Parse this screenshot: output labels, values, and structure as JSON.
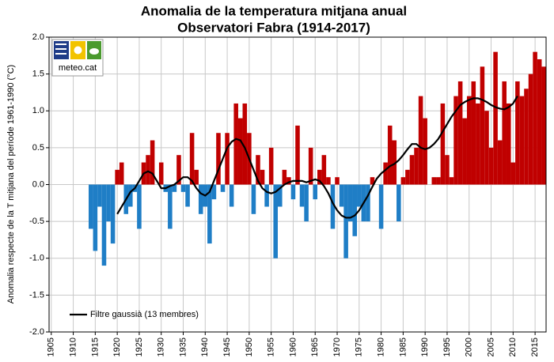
{
  "chart_data": {
    "type": "bar",
    "title": [
      "Anomalia de la temperatura mitjana anual",
      "Observatori Fabra (1914-2017)"
    ],
    "y_label": "Anomalia respecte de la T mitjana del període 1961-1990 (°C)",
    "logo_text": "meteo.cat",
    "x": [
      1914,
      1915,
      1916,
      1917,
      1918,
      1919,
      1920,
      1921,
      1922,
      1923,
      1924,
      1925,
      1926,
      1927,
      1928,
      1929,
      1930,
      1931,
      1932,
      1933,
      1934,
      1935,
      1936,
      1937,
      1938,
      1939,
      1940,
      1941,
      1942,
      1943,
      1944,
      1945,
      1946,
      1947,
      1948,
      1949,
      1950,
      1951,
      1952,
      1953,
      1954,
      1955,
      1956,
      1957,
      1958,
      1959,
      1960,
      1961,
      1962,
      1963,
      1964,
      1965,
      1966,
      1967,
      1968,
      1969,
      1970,
      1971,
      1972,
      1973,
      1974,
      1975,
      1976,
      1977,
      1978,
      1979,
      1980,
      1981,
      1982,
      1983,
      1984,
      1985,
      1986,
      1987,
      1988,
      1989,
      1990,
      1991,
      1992,
      1993,
      1994,
      1995,
      1996,
      1997,
      1998,
      1999,
      2000,
      2001,
      2002,
      2003,
      2004,
      2005,
      2006,
      2007,
      2008,
      2009,
      2010,
      2011,
      2012,
      2013,
      2014,
      2015,
      2016,
      2017
    ],
    "values": [
      -0.6,
      -0.9,
      -0.3,
      -1.1,
      -0.5,
      -0.8,
      0.2,
      0.3,
      -0.4,
      -0.3,
      -0.1,
      -0.6,
      0.3,
      0.4,
      0.6,
      0.0,
      0.3,
      -0.1,
      -0.6,
      -0.1,
      0.4,
      -0.1,
      -0.3,
      0.7,
      0.2,
      -0.4,
      -0.3,
      -0.8,
      -0.2,
      0.7,
      -0.1,
      0.7,
      -0.3,
      1.1,
      0.9,
      1.1,
      0.7,
      -0.4,
      0.4,
      0.2,
      -0.3,
      0.5,
      -1.0,
      -0.3,
      0.2,
      0.1,
      -0.2,
      0.8,
      -0.3,
      -0.5,
      0.5,
      -0.2,
      0.2,
      0.4,
      0.1,
      -0.6,
      0.1,
      -0.3,
      -1.0,
      -0.5,
      -0.7,
      -0.3,
      -0.5,
      -0.5,
      0.1,
      0.0,
      -0.6,
      0.3,
      0.8,
      0.6,
      -0.5,
      0.1,
      0.2,
      0.4,
      0.5,
      1.2,
      0.9,
      0.0,
      0.1,
      0.1,
      1.1,
      0.4,
      0.1,
      1.2,
      1.4,
      0.9,
      1.2,
      1.4,
      1.1,
      1.6,
      1.0,
      0.5,
      1.8,
      0.6,
      1.4,
      1.1,
      0.3,
      1.4,
      1.2,
      1.3,
      1.5,
      1.8,
      1.7,
      1.6
    ],
    "positive_color": "#c00000",
    "negative_color": "#1f7ec6",
    "line": {
      "name": "Filtre gaussià (13 membres)",
      "color": "#000000",
      "x": [
        1920,
        1921,
        1922,
        1923,
        1924,
        1925,
        1926,
        1927,
        1928,
        1929,
        1930,
        1931,
        1932,
        1933,
        1934,
        1935,
        1936,
        1937,
        1938,
        1939,
        1940,
        1941,
        1942,
        1943,
        1944,
        1945,
        1946,
        1947,
        1948,
        1949,
        1950,
        1951,
        1952,
        1953,
        1954,
        1955,
        1956,
        1957,
        1958,
        1959,
        1960,
        1961,
        1962,
        1963,
        1964,
        1965,
        1966,
        1967,
        1968,
        1969,
        1970,
        1971,
        1972,
        1973,
        1974,
        1975,
        1976,
        1977,
        1978,
        1979,
        1980,
        1981,
        1982,
        1983,
        1984,
        1985,
        1986,
        1987,
        1988,
        1989,
        1990,
        1991,
        1992,
        1993,
        1994,
        1995,
        1996,
        1997,
        1998,
        1999,
        2000,
        2001,
        2002,
        2003,
        2004,
        2005,
        2006,
        2007,
        2008,
        2009,
        2010,
        2011
      ],
      "values": [
        -0.4,
        -0.3,
        -0.2,
        -0.1,
        -0.05,
        0.05,
        0.15,
        0.18,
        0.15,
        0.05,
        -0.05,
        -0.05,
        -0.02,
        0.0,
        0.05,
        0.1,
        0.1,
        0.05,
        -0.05,
        -0.12,
        -0.15,
        -0.1,
        0.05,
        0.2,
        0.35,
        0.5,
        0.58,
        0.62,
        0.6,
        0.5,
        0.35,
        0.2,
        0.05,
        -0.05,
        -0.1,
        -0.12,
        -0.1,
        -0.05,
        0.0,
        0.03,
        0.05,
        0.05,
        0.05,
        0.03,
        0.05,
        0.07,
        0.05,
        -0.02,
        -0.12,
        -0.25,
        -0.35,
        -0.42,
        -0.45,
        -0.45,
        -0.42,
        -0.35,
        -0.25,
        -0.15,
        -0.03,
        0.08,
        0.15,
        0.2,
        0.25,
        0.28,
        0.33,
        0.4,
        0.48,
        0.55,
        0.55,
        0.5,
        0.48,
        0.5,
        0.55,
        0.62,
        0.72,
        0.82,
        0.92,
        1.0,
        1.08,
        1.12,
        1.15,
        1.17,
        1.17,
        1.15,
        1.12,
        1.08,
        1.05,
        1.03,
        1.02,
        1.05,
        1.1,
        1.2
      ]
    },
    "xlim": [
      1904.5,
      2017.5
    ],
    "xticks": [
      1905,
      1910,
      1915,
      1920,
      1925,
      1930,
      1935,
      1940,
      1945,
      1950,
      1955,
      1960,
      1965,
      1970,
      1975,
      1980,
      1985,
      1990,
      1995,
      2000,
      2005,
      2010,
      2015
    ],
    "ylim": [
      -2,
      2
    ],
    "yticks": [
      {
        "value": 2,
        "label": "2.0"
      },
      1.5,
      {
        "value": 1,
        "label": "1.0"
      },
      0.5,
      {
        "value": 0,
        "label": "0.0"
      },
      -0.5,
      {
        "value": -1,
        "label": "-1.0"
      },
      -1.5,
      {
        "value": -2,
        "label": "-2.0"
      }
    ],
    "grid": true,
    "legend": "lower left"
  }
}
